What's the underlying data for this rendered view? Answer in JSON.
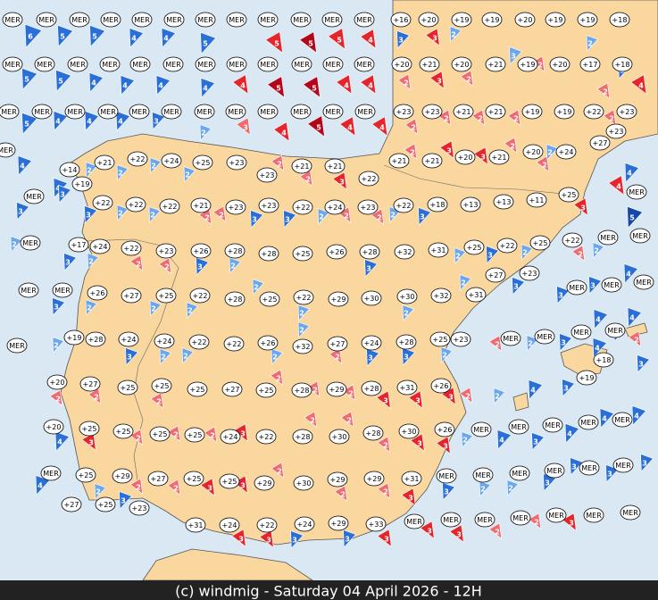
{
  "stations": [
    "MER",
    "MER",
    "MER",
    "MER",
    "MER",
    "MER",
    "MER",
    "MER",
    "MER",
    "MER",
    "MER",
    "MER",
    "+16",
    "+20",
    "+19",
    "+19",
    "+20",
    "+19",
    "+19",
    "+18",
    "MER",
    "MER",
    "MER",
    "MER",
    "MER",
    "MER",
    "MER",
    "MER",
    "MER",
    "MER",
    "MER",
    "MER",
    "+20",
    "+21",
    "+20",
    "+21",
    "+19",
    "+20",
    "+17",
    "+18",
    "MER",
    "MER",
    "MER",
    "MER",
    "MER",
    "MER",
    "MER",
    "MER",
    "MER",
    "MER",
    "MER",
    "MER",
    "+23",
    "+23",
    "+21",
    "+21",
    "+19",
    "+19",
    "+22",
    "+23",
    "+23",
    "MER",
    "+14",
    "+21",
    "+22",
    "+24",
    "+25",
    "+23",
    "+23",
    "+21",
    "+21",
    "+22",
    "+21",
    "+21",
    "+20",
    "+21",
    "+20",
    "+24",
    "+27",
    "+19",
    "MER",
    "+22",
    "+22",
    "+22",
    "+21",
    "+23",
    "+23",
    "+22",
    "+24",
    "+23",
    "+22",
    "+18",
    "+13",
    "+13",
    "+11",
    "+25",
    "MER",
    "MER",
    "+17",
    "+24",
    "+22",
    "+23",
    "+26",
    "+28",
    "+28",
    "+25",
    "+26",
    "+28",
    "+32",
    "+31",
    "+25",
    "+22",
    "+25",
    "+22",
    "MER",
    "MER",
    "MER",
    "MER",
    "+26",
    "+27",
    "+25",
    "+22",
    "+28",
    "+25",
    "+22",
    "+29",
    "+30",
    "+30",
    "+32",
    "+27",
    "+23",
    "+31",
    "MER",
    "MER",
    "MER",
    "MER",
    "+19",
    "+28",
    "+24",
    "+24",
    "+22",
    "+22",
    "+26",
    "+32",
    "+27",
    "+24",
    "+28",
    "+25",
    "+23",
    "MER",
    "MER",
    "MER",
    "MER",
    "+18",
    "+20",
    "+27",
    "+25",
    "+25",
    "+25",
    "+27",
    "+25",
    "+28",
    "+29",
    "+28",
    "+31",
    "+26",
    "+19",
    "+20",
    "+25",
    "+25",
    "+25",
    "+25",
    "+24",
    "+22",
    "+28",
    "+30",
    "+28",
    "+30",
    "+26",
    "MER",
    "MER",
    "MER",
    "MER",
    "MER",
    "MER",
    "+25",
    "+29",
    "+27",
    "+25",
    "+25",
    "+29",
    "+30",
    "+29",
    "+29",
    "+31",
    "MER",
    "MER",
    "MER",
    "MER",
    "MER",
    "MER",
    "+27",
    "+25",
    "+23",
    "+31",
    "+24",
    "+22",
    "+24",
    "+29",
    "+33",
    "MER",
    "MER",
    "MER",
    "MER",
    "MER",
    "MER",
    "MER"
  ],
  "arrows": [
    {
      "value": 6,
      "color": "#2a6fd8"
    },
    {
      "value": 5,
      "color": "#2a6fd8"
    },
    {
      "value": 5,
      "color": "#2a6fd8"
    },
    {
      "value": 4,
      "color": "#2a6fd8"
    },
    {
      "value": 4,
      "color": "#2a6fd8"
    },
    {
      "value": 5,
      "color": "#2a6fd8"
    },
    {
      "value": 5,
      "color": "#e4262c"
    },
    {
      "value": 5,
      "color": "#b3061a"
    },
    {
      "value": 5,
      "color": "#e4262c"
    },
    {
      "value": 4,
      "color": "#e4262c"
    },
    {
      "value": 3,
      "color": "#2a6fd8"
    },
    {
      "value": 3,
      "color": "#e4262c"
    },
    {
      "value": 2,
      "color": "#6aa7ec"
    },
    {
      "value": 2,
      "color": "#6aa7ec"
    },
    {
      "value": 5,
      "color": "#2a6fd8"
    },
    {
      "value": 5,
      "color": "#2a6fd8"
    },
    {
      "value": 4,
      "color": "#2a6fd8"
    },
    {
      "value": 4,
      "color": "#2a6fd8"
    },
    {
      "value": 4,
      "color": "#2a6fd8"
    },
    {
      "value": 4,
      "color": "#2a6fd8"
    },
    {
      "value": 4,
      "color": "#e4262c"
    },
    {
      "value": 5,
      "color": "#b3061a"
    },
    {
      "value": 5,
      "color": "#b3061a"
    },
    {
      "value": 4,
      "color": "#e4262c"
    },
    {
      "value": 4,
      "color": "#e4262c"
    },
    {
      "value": 2,
      "color": "#f06a72"
    },
    {
      "value": 3,
      "color": "#e4262c"
    },
    {
      "value": 2,
      "color": "#f06a72"
    },
    {
      "value": 3,
      "color": "#6aa7ec"
    },
    {
      "value": 2,
      "color": "#f06a72"
    },
    {
      "value": 3,
      "color": "#2a6fd8"
    },
    {
      "value": 2,
      "color": "#f06a72"
    },
    {
      "value": 4,
      "color": "#e4262c"
    },
    {
      "value": 5,
      "color": "#2a6fd8"
    },
    {
      "value": 4,
      "color": "#2a6fd8"
    },
    {
      "value": 4,
      "color": "#2a6fd8"
    },
    {
      "value": 4,
      "color": "#2a6fd8"
    },
    {
      "value": 3,
      "color": "#2a6fd8"
    },
    {
      "value": 2,
      "color": "#6aa7ec"
    },
    {
      "value": 3,
      "color": "#f06a72"
    },
    {
      "value": 4,
      "color": "#e4262c"
    },
    {
      "value": 5,
      "color": "#b3061a"
    },
    {
      "value": 4,
      "color": "#e4262c"
    },
    {
      "value": 4,
      "color": "#e4262c"
    },
    {
      "value": 2,
      "color": "#f06a72"
    },
    {
      "value": 2,
      "color": "#f06a72"
    },
    {
      "value": 2,
      "color": "#f06a72"
    },
    {
      "value": 2,
      "color": "#f06a72"
    },
    {
      "value": 2,
      "color": "#f06a72"
    },
    {
      "value": 4,
      "color": "#2a6fd8"
    },
    {
      "value": 4,
      "color": "#2a6fd8"
    },
    {
      "value": 2,
      "color": "#6aa7ec"
    },
    {
      "value": 2,
      "color": "#6aa7ec"
    },
    {
      "value": 2,
      "color": "#6aa7ec"
    },
    {
      "value": 2,
      "color": "#6aa7ec"
    },
    {
      "value": 2,
      "color": "#f06a72"
    },
    {
      "value": 2,
      "color": "#f06a72"
    },
    {
      "value": 3,
      "color": "#e4262c"
    },
    {
      "value": 2,
      "color": "#f06a72"
    },
    {
      "value": 3,
      "color": "#e4262c"
    },
    {
      "value": 3,
      "color": "#e4262c"
    },
    {
      "value": 2,
      "color": "#f06a72"
    },
    {
      "value": 2,
      "color": "#6aa7ec"
    },
    {
      "value": 2,
      "color": "#f06a72"
    },
    {
      "value": 4,
      "color": "#2a6fd8"
    },
    {
      "value": 3,
      "color": "#2a6fd8"
    },
    {
      "value": 3,
      "color": "#2a6fd8"
    },
    {
      "value": 3,
      "color": "#2a6fd8"
    },
    {
      "value": 2,
      "color": "#6aa7ec"
    },
    {
      "value": 2,
      "color": "#6aa7ec"
    },
    {
      "value": 2,
      "color": "#f06a72"
    },
    {
      "value": 2,
      "color": "#f06a72"
    },
    {
      "value": 3,
      "color": "#2a6fd8"
    },
    {
      "value": 3,
      "color": "#2a6fd8"
    },
    {
      "value": 2,
      "color": "#6aa7ec"
    },
    {
      "value": 2,
      "color": "#f06a72"
    },
    {
      "value": 2,
      "color": "#f06a72"
    },
    {
      "value": 2,
      "color": "#6aa7ec"
    },
    {
      "value": 3,
      "color": "#2a6fd8"
    },
    {
      "value": 3,
      "color": "#e4262c"
    },
    {
      "value": 4,
      "color": "#e4262c"
    },
    {
      "value": 5,
      "color": "#1747a6"
    },
    {
      "value": 2,
      "color": "#6aa7ec"
    },
    {
      "value": 3,
      "color": "#2a6fd8"
    },
    {
      "value": 2,
      "color": "#6aa7ec"
    },
    {
      "value": 2,
      "color": "#f06a72"
    },
    {
      "value": 2,
      "color": "#f06a72"
    },
    {
      "value": 3,
      "color": "#2a6fd8"
    },
    {
      "value": 2,
      "color": "#6aa7ec"
    },
    {
      "value": 3,
      "color": "#2a6fd8"
    },
    {
      "value": 2,
      "color": "#6aa7ec"
    },
    {
      "value": 3,
      "color": "#2a6fd8"
    },
    {
      "value": 2,
      "color": "#6aa7ec"
    },
    {
      "value": 2,
      "color": "#f06a72"
    },
    {
      "value": 2,
      "color": "#6aa7ec"
    },
    {
      "value": 3,
      "color": "#2a6fd8"
    },
    {
      "value": 2,
      "color": "#6aa7ec"
    },
    {
      "value": 2,
      "color": "#6aa7ec"
    },
    {
      "value": 2,
      "color": "#6aa7ec"
    },
    {
      "value": 2,
      "color": "#6aa7ec"
    },
    {
      "value": 2,
      "color": "#6aa7ec"
    },
    {
      "value": 2,
      "color": "#6aa7ec"
    },
    {
      "value": 2,
      "color": "#6aa7ec"
    },
    {
      "value": 3,
      "color": "#2a6fd8"
    },
    {
      "value": 3,
      "color": "#2a6fd8"
    },
    {
      "value": 3,
      "color": "#2a6fd8"
    },
    {
      "value": 4,
      "color": "#2a6fd8"
    },
    {
      "value": 2,
      "color": "#6aa7ec"
    },
    {
      "value": 3,
      "color": "#2a6fd8"
    },
    {
      "value": 2,
      "color": "#6aa7ec"
    },
    {
      "value": 2,
      "color": "#6aa7ec"
    },
    {
      "value": 2,
      "color": "#6aa7ec"
    },
    {
      "value": 2,
      "color": "#6aa7ec"
    },
    {
      "value": 2,
      "color": "#f06a72"
    },
    {
      "value": 3,
      "color": "#2a6fd8"
    },
    {
      "value": 3,
      "color": "#2a6fd8"
    },
    {
      "value": 2,
      "color": "#6aa7ec"
    },
    {
      "value": 2,
      "color": "#f06a72"
    },
    {
      "value": 2,
      "color": "#6aa7ec"
    },
    {
      "value": 3,
      "color": "#2a6fd8"
    },
    {
      "value": 4,
      "color": "#2a6fd8"
    },
    {
      "value": 4,
      "color": "#2a6fd8"
    },
    {
      "value": 4,
      "color": "#2a6fd8"
    },
    {
      "value": 3,
      "color": "#2a6fd8"
    },
    {
      "value": 2,
      "color": "#f06a72"
    },
    {
      "value": 3,
      "color": "#2a6fd8"
    },
    {
      "value": 2,
      "color": "#f06a72"
    },
    {
      "value": 2,
      "color": "#f06a72"
    },
    {
      "value": 2,
      "color": "#f06a72"
    },
    {
      "value": 2,
      "color": "#f06a72"
    },
    {
      "value": 2,
      "color": "#f06a72"
    },
    {
      "value": 2,
      "color": "#f06a72"
    },
    {
      "value": 3,
      "color": "#e4262c"
    },
    {
      "value": 3,
      "color": "#e4262c"
    },
    {
      "value": 3,
      "color": "#e4262c"
    },
    {
      "value": 2,
      "color": "#f06a72"
    },
    {
      "value": 2,
      "color": "#6aa7ec"
    },
    {
      "value": 4,
      "color": "#2a6fd8"
    },
    {
      "value": 3,
      "color": "#2a6fd8"
    },
    {
      "value": 4,
      "color": "#2a6fd8"
    },
    {
      "value": 3,
      "color": "#e4262c"
    },
    {
      "value": 2,
      "color": "#f06a72"
    },
    {
      "value": 2,
      "color": "#f06a72"
    },
    {
      "value": 2,
      "color": "#f06a72"
    },
    {
      "value": 3,
      "color": "#e4262c"
    },
    {
      "value": 2,
      "color": "#f06a72"
    },
    {
      "value": 2,
      "color": "#f06a72"
    },
    {
      "value": 2,
      "color": "#f06a72"
    },
    {
      "value": 3,
      "color": "#e4262c"
    },
    {
      "value": 3,
      "color": "#e4262c"
    },
    {
      "value": 2,
      "color": "#6aa7ec"
    },
    {
      "value": 4,
      "color": "#2a6fd8"
    },
    {
      "value": 3,
      "color": "#2a6fd8"
    },
    {
      "value": 4,
      "color": "#2a6fd8"
    },
    {
      "value": 4,
      "color": "#2a6fd8"
    },
    {
      "value": 4,
      "color": "#2a6fd8"
    },
    {
      "value": 4,
      "color": "#2a6fd8"
    },
    {
      "value": 2,
      "color": "#6aa7ec"
    },
    {
      "value": 2,
      "color": "#f06a72"
    },
    {
      "value": 2,
      "color": "#f06a72"
    },
    {
      "value": 3,
      "color": "#e4262c"
    },
    {
      "value": 3,
      "color": "#e4262c"
    },
    {
      "value": 2,
      "color": "#f06a72"
    },
    {
      "value": 2,
      "color": "#f06a72"
    },
    {
      "value": 2,
      "color": "#f06a72"
    },
    {
      "value": 3,
      "color": "#e4262c"
    },
    {
      "value": 3,
      "color": "#2a6fd8"
    },
    {
      "value": 2,
      "color": "#6aa7ec"
    },
    {
      "value": 2,
      "color": "#6aa7ec"
    },
    {
      "value": 3,
      "color": "#2a6fd8"
    },
    {
      "value": 3,
      "color": "#2a6fd8"
    },
    {
      "value": 3,
      "color": "#2a6fd8"
    },
    {
      "value": 3,
      "color": "#2a6fd8"
    },
    {
      "value": 3,
      "color": "#2a6fd8"
    },
    {
      "value": 3,
      "color": "#e4262c"
    },
    {
      "value": 3,
      "color": "#e4262c"
    },
    {
      "value": 3,
      "color": "#2a6fd8"
    },
    {
      "value": 3,
      "color": "#2a6fd8"
    },
    {
      "value": 3,
      "color": "#e4262c"
    },
    {
      "value": 3,
      "color": "#e4262c"
    },
    {
      "value": 3,
      "color": "#e4262c"
    },
    {
      "value": 2,
      "color": "#f06a72"
    },
    {
      "value": 2,
      "color": "#f06a72"
    },
    {
      "value": 3,
      "color": "#e4262c"
    },
    {
      "value": 3,
      "color": "#e4262c"
    }
  ],
  "footer": "(c) windmig - Saturday 04 April 2026 - 12H"
}
